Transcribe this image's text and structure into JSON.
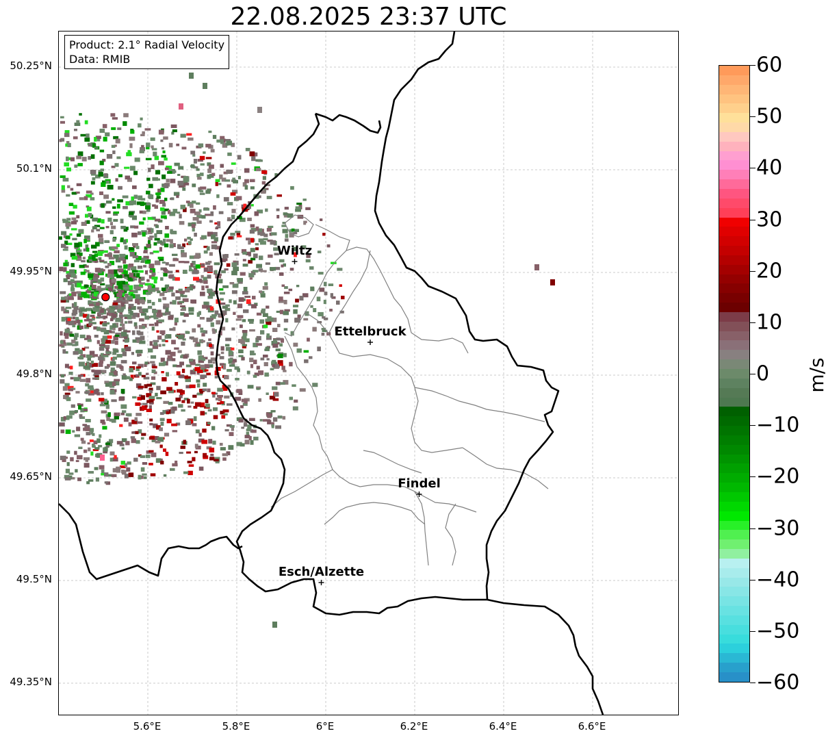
{
  "title": "22.08.2025 23:37 UTC",
  "info": {
    "product": "Product: 2.1° Radial Velocity",
    "source": "Data: RMIB"
  },
  "lat_ticks": [
    "50.25°N",
    "50.1°N",
    "49.95°N",
    "49.8°N",
    "49.65°N",
    "49.5°N",
    "49.35°N"
  ],
  "lon_ticks": [
    "5.6°E",
    "5.8°E",
    "6°E",
    "6.2°E",
    "6.4°E",
    "6.6°E"
  ],
  "cities": [
    {
      "name": "Wiltz",
      "lon": 5.93,
      "lat": 49.966
    },
    {
      "name": "Ettelbruck",
      "lon": 6.1,
      "lat": 49.848
    },
    {
      "name": "Findel",
      "lon": 6.21,
      "lat": 49.626
    },
    {
      "name": "Esch/Alzette",
      "lon": 5.99,
      "lat": 49.497
    }
  ],
  "radar_site": {
    "lon": 5.505,
    "lat": 49.914,
    "color": "#ff0000"
  },
  "colorbar": {
    "unit": "m/s",
    "min": -60,
    "max": 60,
    "ticks": [
      "60",
      "50",
      "40",
      "30",
      "20",
      "10",
      "0",
      "−10",
      "−20",
      "−30",
      "−40",
      "−50",
      "−60"
    ],
    "colors_top_to_bottom": [
      "#ff9a5a",
      "#ffa86a",
      "#ffb676",
      "#ffc380",
      "#ffd08c",
      "#ffe09a",
      "#ffd9a8",
      "#ffc8c0",
      "#ffb2bd",
      "#ff9fd0",
      "#ff8fd2",
      "#ff7fb8",
      "#ff6a9a",
      "#ff5580",
      "#ff4a6a",
      "#ff3f58",
      "#f00000",
      "#e00000",
      "#d20000",
      "#c40000",
      "#b40000",
      "#a40000",
      "#940000",
      "#860000",
      "#780000",
      "#6c0000",
      "#7c3c48",
      "#825058",
      "#886068",
      "#8a7078",
      "#888080",
      "#7a8876",
      "#6c8a6a",
      "#5e8260",
      "#557a55",
      "#4e7850",
      "#006000",
      "#006a00",
      "#007400",
      "#007e00",
      "#008800",
      "#009400",
      "#00a000",
      "#00ac00",
      "#00b800",
      "#00c800",
      "#00d800",
      "#00e800",
      "#28f028",
      "#50f050",
      "#70f070",
      "#90f0a0",
      "#b8f0f0",
      "#a8ecec",
      "#98e8e8",
      "#88e6e6",
      "#78e4e4",
      "#68e2e2",
      "#58e0e0",
      "#48dede",
      "#38dcdc",
      "#2cd0dc",
      "#2ab8d4",
      "#28a0cc",
      "#2890c8"
    ]
  },
  "colors": {
    "border": "#000000",
    "district": "#808080",
    "grid": "#bbbbbb"
  }
}
